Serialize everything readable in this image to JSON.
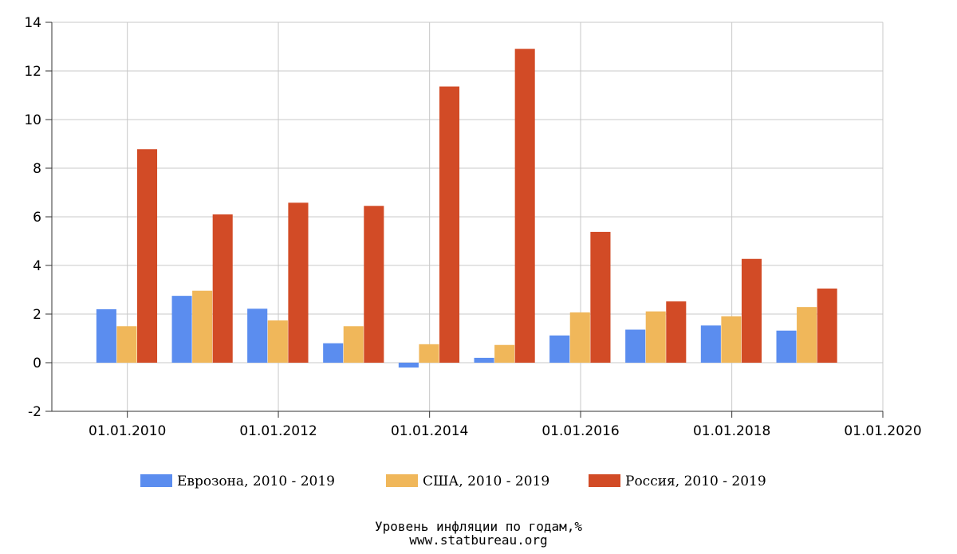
{
  "chart_data": {
    "type": "bar",
    "title": "Уровень инфляции по годам,%",
    "source": "www.statbureau.org",
    "xlabel": "",
    "ylabel": "",
    "ylim": [
      -2,
      14
    ],
    "yticks": [
      "-2",
      "0",
      "2",
      "4",
      "6",
      "8",
      "10",
      "12",
      "14"
    ],
    "xlim": [
      "01.01.2009",
      "01.01.2020"
    ],
    "xticks": [
      "01.01.2010",
      "01.01.2012",
      "01.01.2014",
      "01.01.2016",
      "01.01.2018",
      "01.01.2020"
    ],
    "grid": true,
    "legend_position": "bottom",
    "categories": [
      "2010",
      "2011",
      "2012",
      "2013",
      "2014",
      "2015",
      "2016",
      "2017",
      "2018",
      "2019"
    ],
    "series": [
      {
        "name": "Еврозона, 2010 - 2019",
        "color": "#5b8def",
        "values": [
          2.2,
          2.75,
          2.22,
          0.8,
          -0.2,
          0.2,
          1.12,
          1.36,
          1.53,
          1.32
        ]
      },
      {
        "name": "США, 2010 - 2019",
        "color": "#f0b75a",
        "values": [
          1.5,
          2.96,
          1.74,
          1.5,
          0.76,
          0.73,
          2.07,
          2.11,
          1.91,
          2.29
        ]
      },
      {
        "name": "Россия, 2010 - 2019",
        "color": "#d24b26",
        "values": [
          8.78,
          6.1,
          6.58,
          6.45,
          11.36,
          12.91,
          5.38,
          2.52,
          4.27,
          3.05
        ]
      }
    ]
  }
}
